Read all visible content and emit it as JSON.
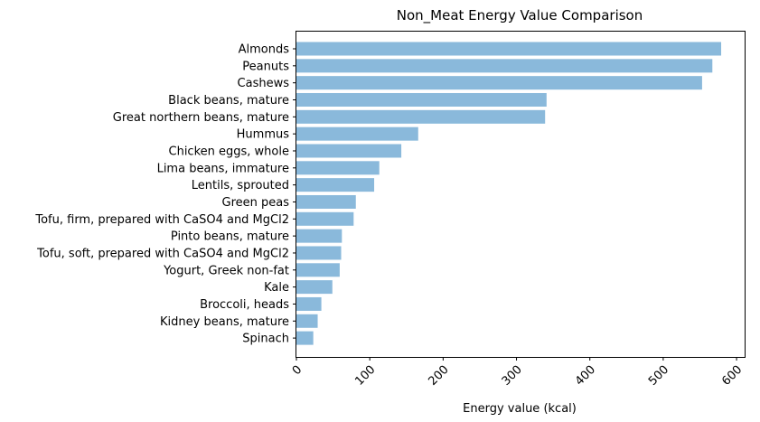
{
  "chart_data": {
    "type": "bar",
    "orientation": "horizontal",
    "title": "Non_Meat Energy Value Comparison",
    "xlabel": "Energy value (kcal)",
    "ylabel": "",
    "xlim": [
      0,
      611
    ],
    "xticks": [
      0,
      100,
      200,
      300,
      400,
      500,
      600
    ],
    "tick_label_rotation_deg": 45,
    "bar_color": "#8ab9db",
    "grid": false,
    "categories": [
      "Almonds",
      "Peanuts",
      "Cashews",
      "Black beans, mature",
      "Great northern beans, mature",
      "Hummus",
      "Chicken eggs, whole",
      "Lima beans, immature",
      "Lentils, sprouted",
      "Green peas",
      "Tofu, firm, prepared with CaSO4 and MgCl2",
      "Pinto beans, mature",
      "Tofu, soft, prepared with CaSO4 and MgCl2",
      "Yogurt, Greek non-fat",
      "Kale",
      "Broccoli, heads",
      "Kidney beans, mature",
      "Spinach"
    ],
    "values": [
      579,
      567,
      553,
      341,
      339,
      166,
      143,
      113,
      106,
      81,
      78,
      62,
      61,
      59,
      49,
      34,
      29,
      23
    ]
  }
}
